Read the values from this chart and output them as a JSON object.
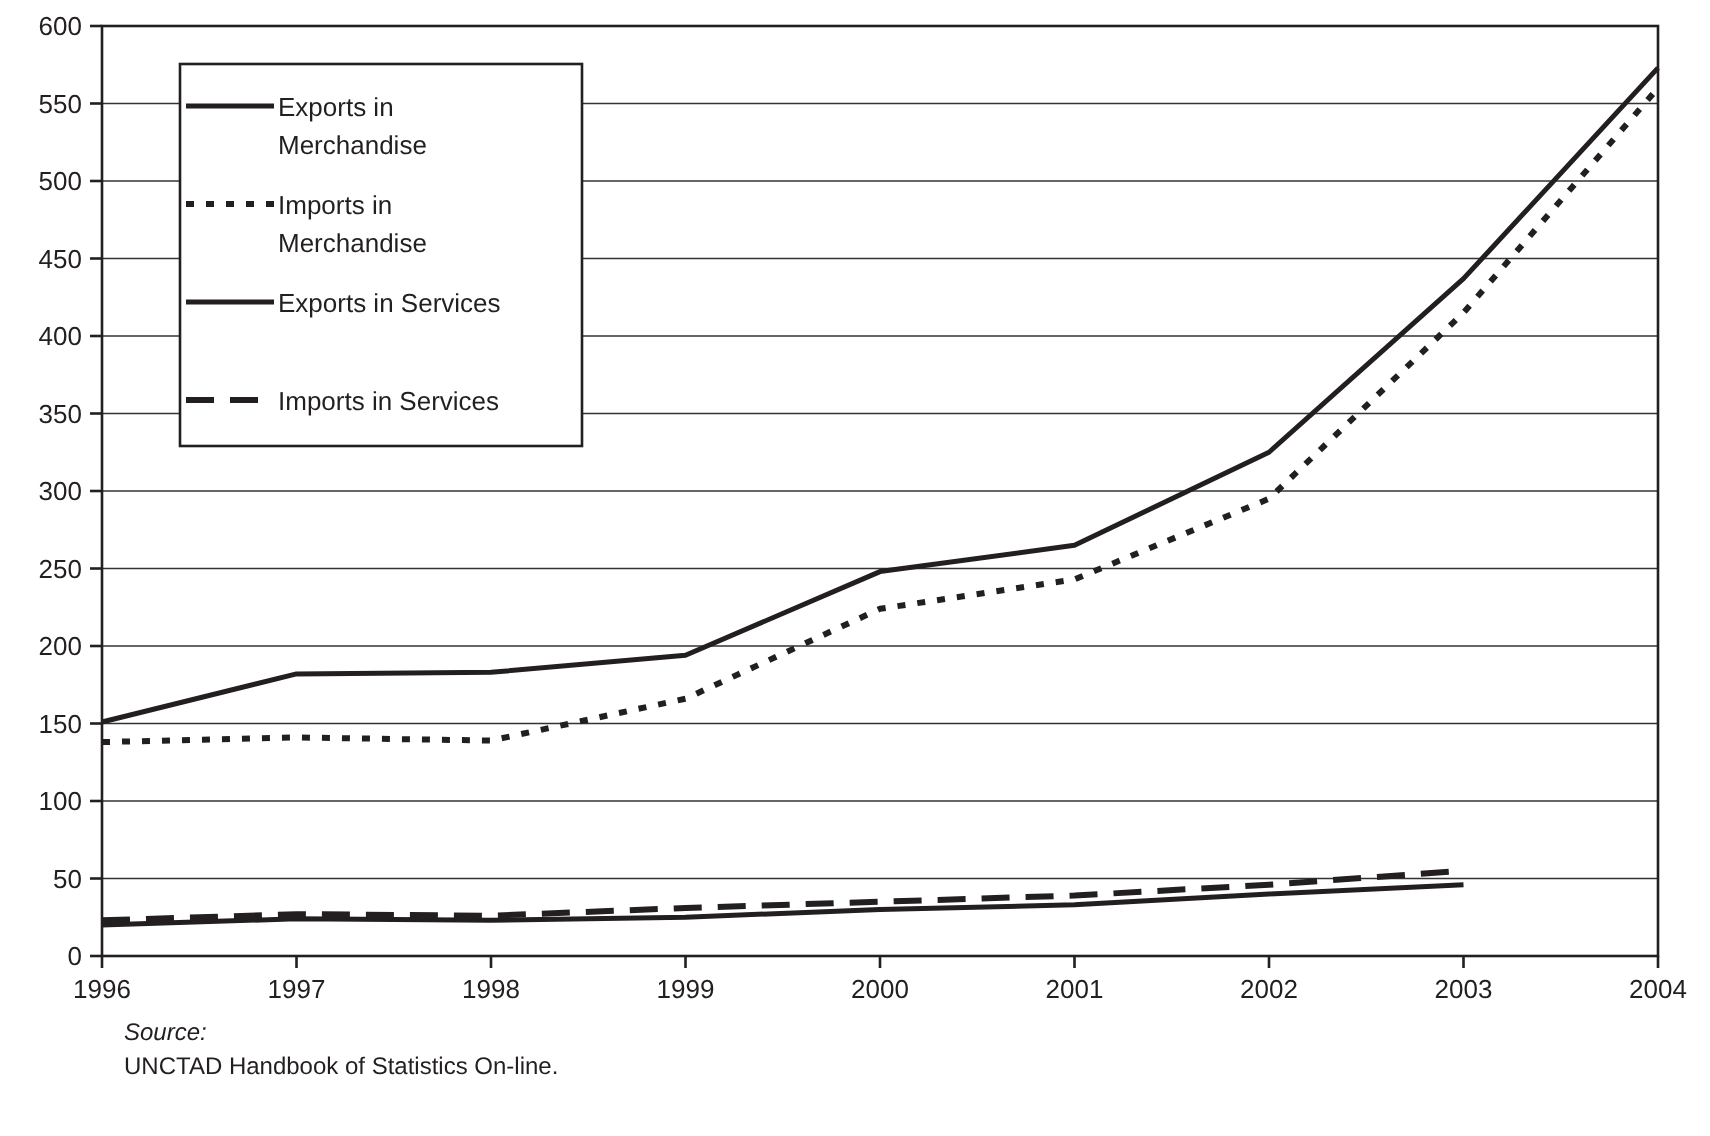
{
  "chart_data": {
    "type": "line",
    "x": [
      1996,
      1997,
      1998,
      1999,
      2000,
      2001,
      2002,
      2003,
      2004
    ],
    "series": [
      {
        "name": "Exports in Merchandise",
        "color": "#231f20",
        "line_style": "solid",
        "values": [
          151,
          182,
          183,
          194,
          248,
          265,
          325,
          437,
          573
        ]
      },
      {
        "name": "Imports in Merchandise",
        "color": "#231f20",
        "line_style": "dotted",
        "values": [
          138,
          141,
          139,
          166,
          224,
          243,
          295,
          415,
          560
        ]
      },
      {
        "name": "Exports in Services",
        "color": "#231f20",
        "line_style": "solid",
        "values": [
          20,
          24,
          23,
          25,
          30,
          33,
          40,
          46,
          null
        ]
      },
      {
        "name": "Imports in Services",
        "color": "#231f20",
        "line_style": "dashed",
        "values": [
          23,
          27,
          26,
          31,
          35,
          39,
          46,
          55,
          null
        ]
      }
    ],
    "xlim": [
      1996,
      2004
    ],
    "xticks": [
      1996,
      1997,
      1998,
      1999,
      2000,
      2001,
      2002,
      2003,
      2004
    ],
    "ylim": [
      0,
      600
    ],
    "yticks": [
      0,
      50,
      100,
      150,
      200,
      250,
      300,
      350,
      400,
      450,
      500,
      550,
      600
    ],
    "grid": "y",
    "legend": "top left",
    "marker": "none",
    "annotations": [
      "Source:",
      "UNCTAD Handbook of Statistics On-line."
    ]
  }
}
